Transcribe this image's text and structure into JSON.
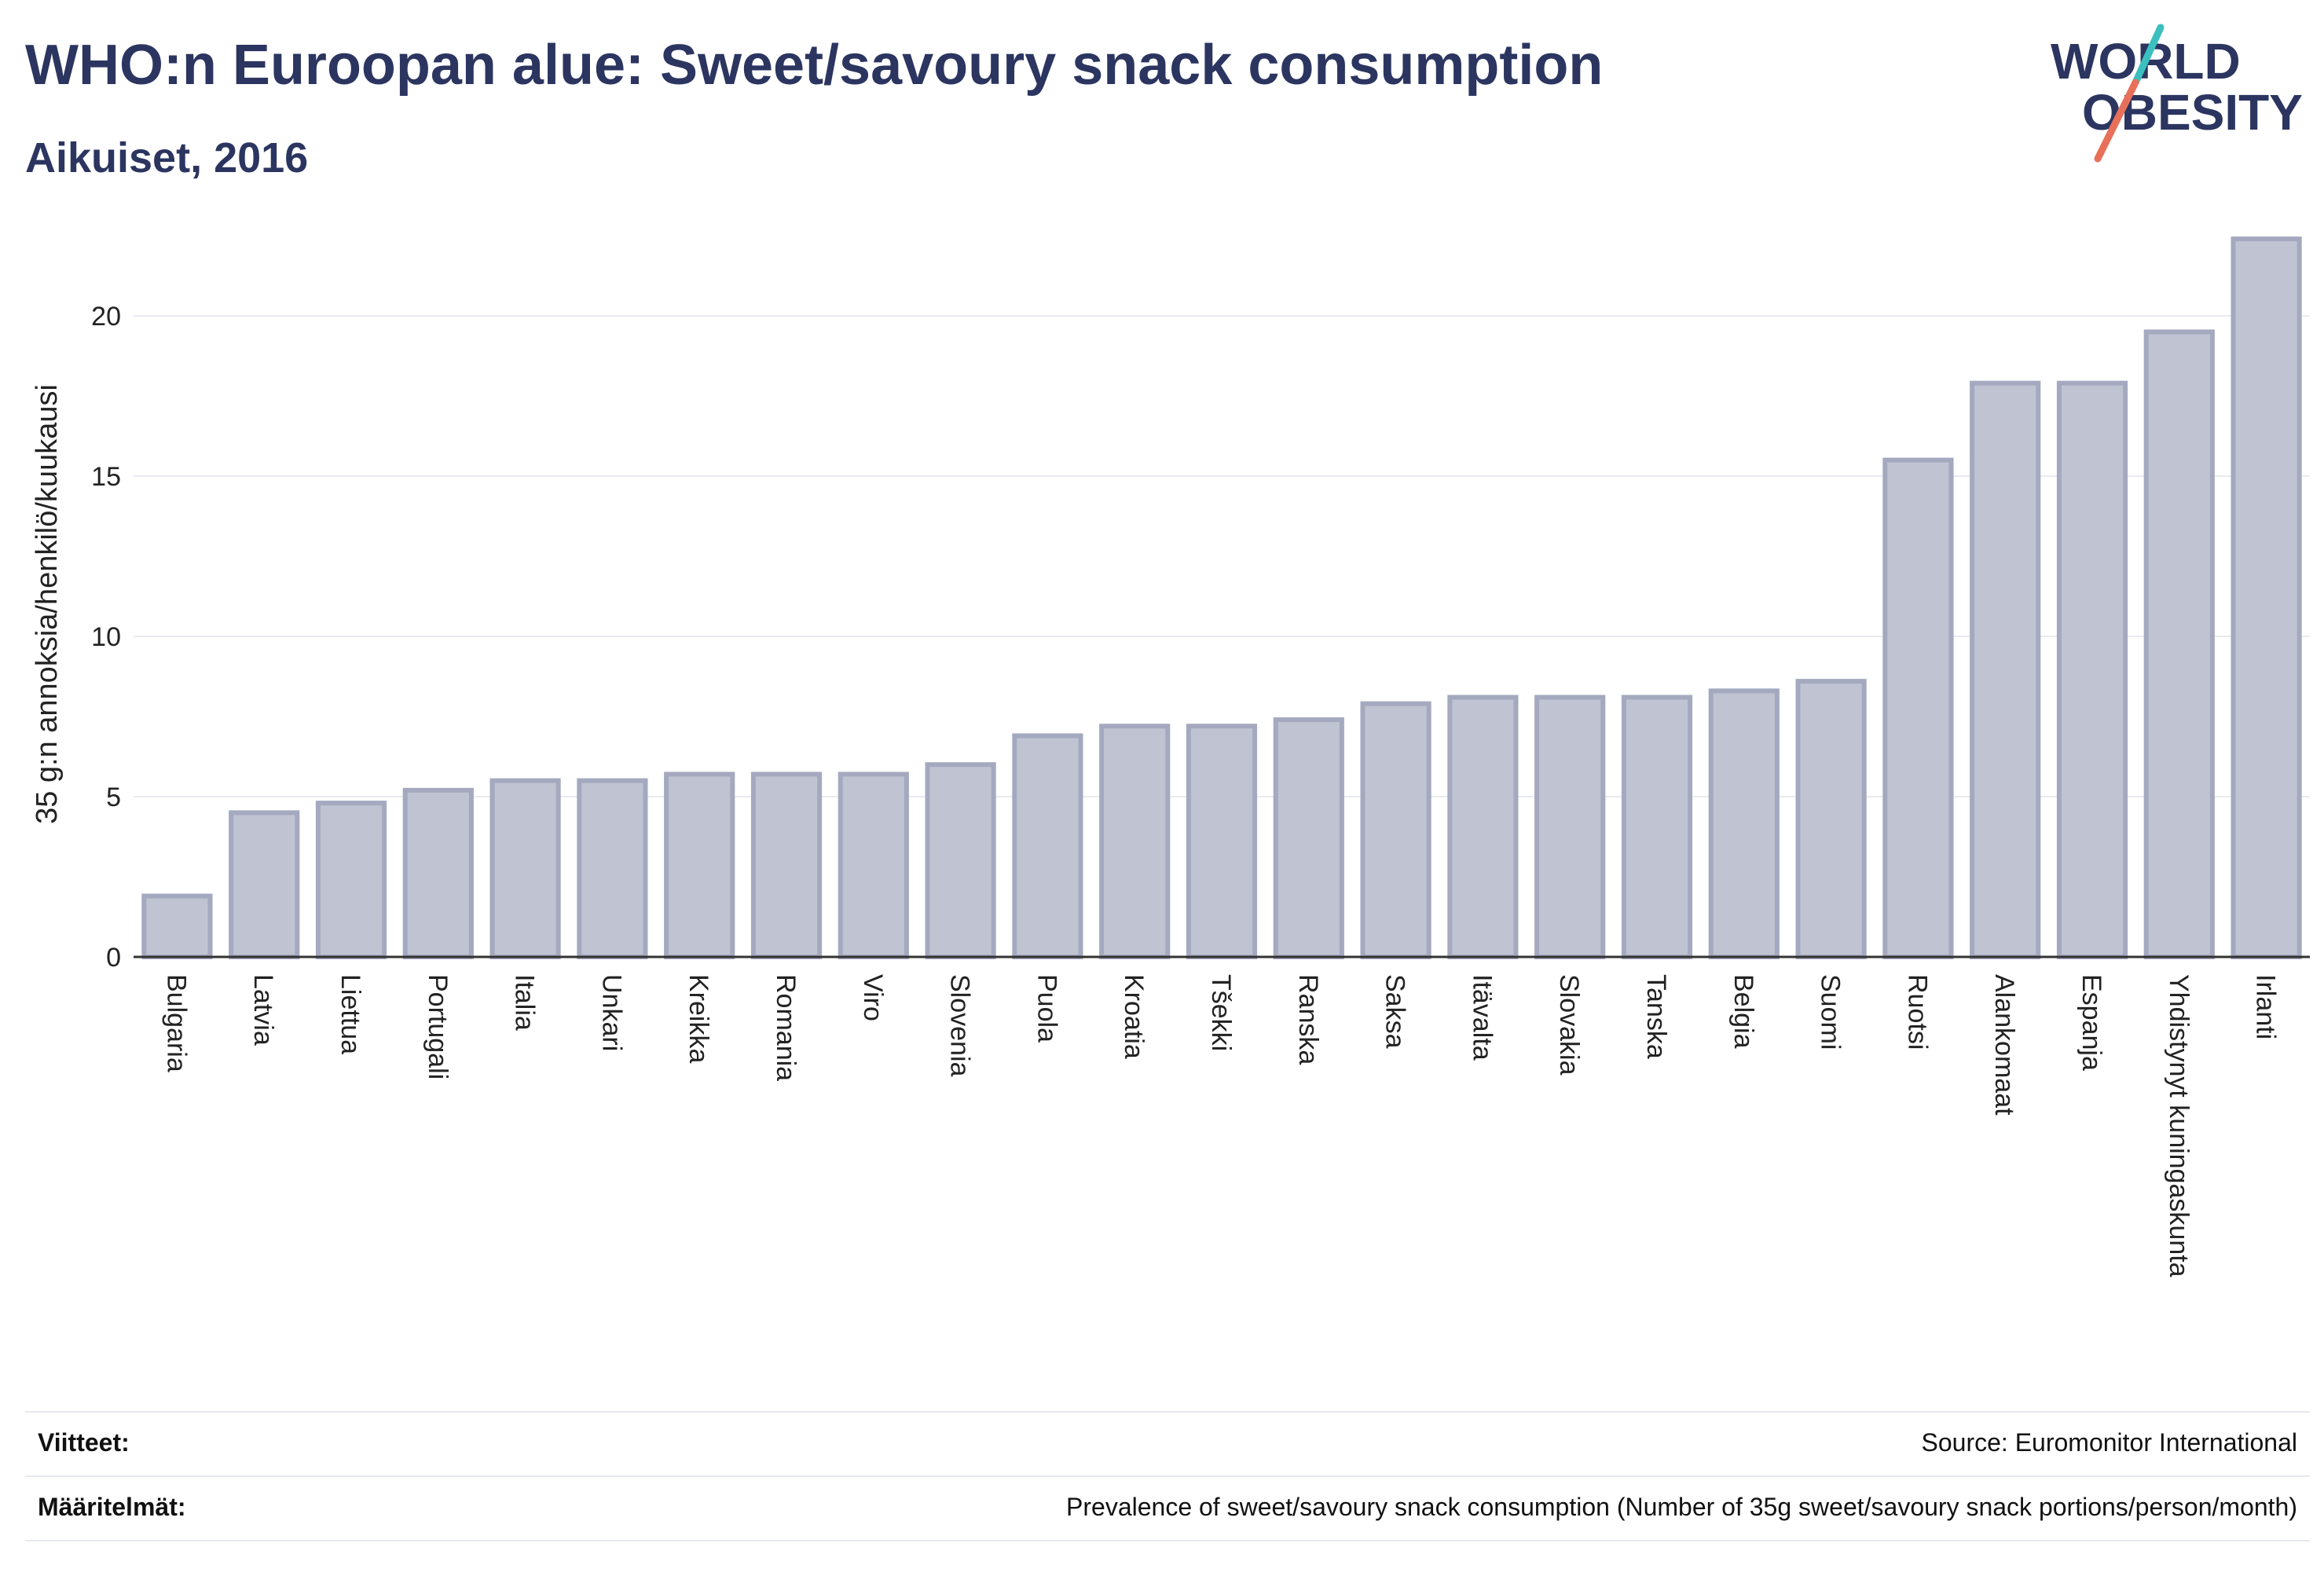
{
  "header": {
    "title": "WHO:n Euroopan alue: Sweet/savoury snack consumption",
    "subtitle": "Aikuiset, 2016"
  },
  "logo": {
    "line1": "WORLD",
    "line2": "OBESITY",
    "accent_colors": [
      "#3bbfbf",
      "#e8705a"
    ]
  },
  "footer": {
    "references_label": "Viitteet:",
    "references_value": "Source: Euromonitor International",
    "definitions_label": "Määritelmät:",
    "definitions_value": "Prevalence of sweet/savoury snack consumption (Number of 35g sweet/savoury snack portions/person/month)"
  },
  "colors": {
    "bar_fill": "#bfc3d2",
    "bar_stroke": "#a4a9bf",
    "text": "#2b3560",
    "grid": "#e9ebf0"
  },
  "chart_data": {
    "type": "bar",
    "ylabel": "35 g:n annoksia/henkilö/kuukausi",
    "xlabel": "",
    "ylim": [
      0,
      22.5
    ],
    "yticks": [
      0,
      5,
      10,
      15,
      20
    ],
    "grid": true,
    "categories": [
      "Bulgaria",
      "Latvia",
      "Liettua",
      "Portugali",
      "Italia",
      "Unkari",
      "Kreikka",
      "Romania",
      "Viro",
      "Slovenia",
      "Puola",
      "Kroatia",
      "Tšekki",
      "Ranska",
      "Saksa",
      "Itävalta",
      "Slovakia",
      "Tanska",
      "Belgia",
      "Suomi",
      "Ruotsi",
      "Alankomaat",
      "Espanja",
      "Yhdistynyt kuningaskunta",
      "Irlanti"
    ],
    "values": [
      1.9,
      4.5,
      4.8,
      5.2,
      5.5,
      5.5,
      5.7,
      5.7,
      5.7,
      6.0,
      6.9,
      7.2,
      7.2,
      7.4,
      7.9,
      8.1,
      8.1,
      8.1,
      8.3,
      8.6,
      15.5,
      17.9,
      17.9,
      19.5,
      22.4
    ]
  }
}
